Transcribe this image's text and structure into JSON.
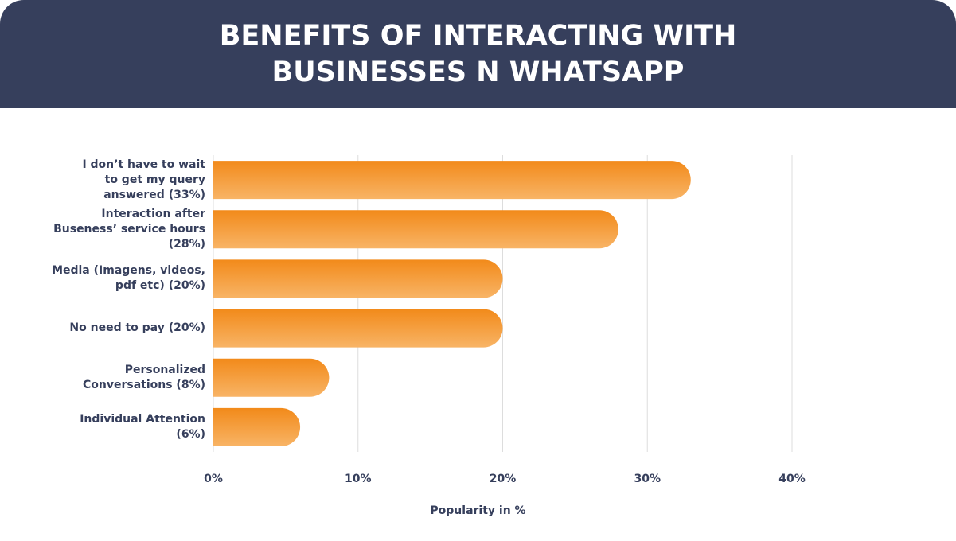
{
  "chart_data": {
    "type": "bar",
    "orientation": "horizontal",
    "title": "BENEFITS OF INTERACTING WITH\nBUSINESSES N WHATSAPP",
    "categories": [
      "I don’t have to wait\nto get my query\nanswered (33%)",
      "Interaction after\nBuseness’ service hours\n(28%)",
      "Media (Imagens, videos,\npdf etc) (20%)",
      "No need to pay (20%)",
      "Personalized\nConversations (8%)",
      "Individual Attention\n(6%)"
    ],
    "values": [
      33,
      28,
      20,
      20,
      8,
      6
    ],
    "color": "#f28a1a",
    "xlim": [
      0,
      40
    ],
    "xticks": [
      {
        "value": 0,
        "label": "0%"
      },
      {
        "value": 10,
        "label": "10%"
      },
      {
        "value": 20,
        "label": "20%"
      },
      {
        "value": 30,
        "label": "30%"
      },
      {
        "value": 40,
        "label": "40%"
      }
    ],
    "x_label": "Popularity in %",
    "grid": true
  }
}
